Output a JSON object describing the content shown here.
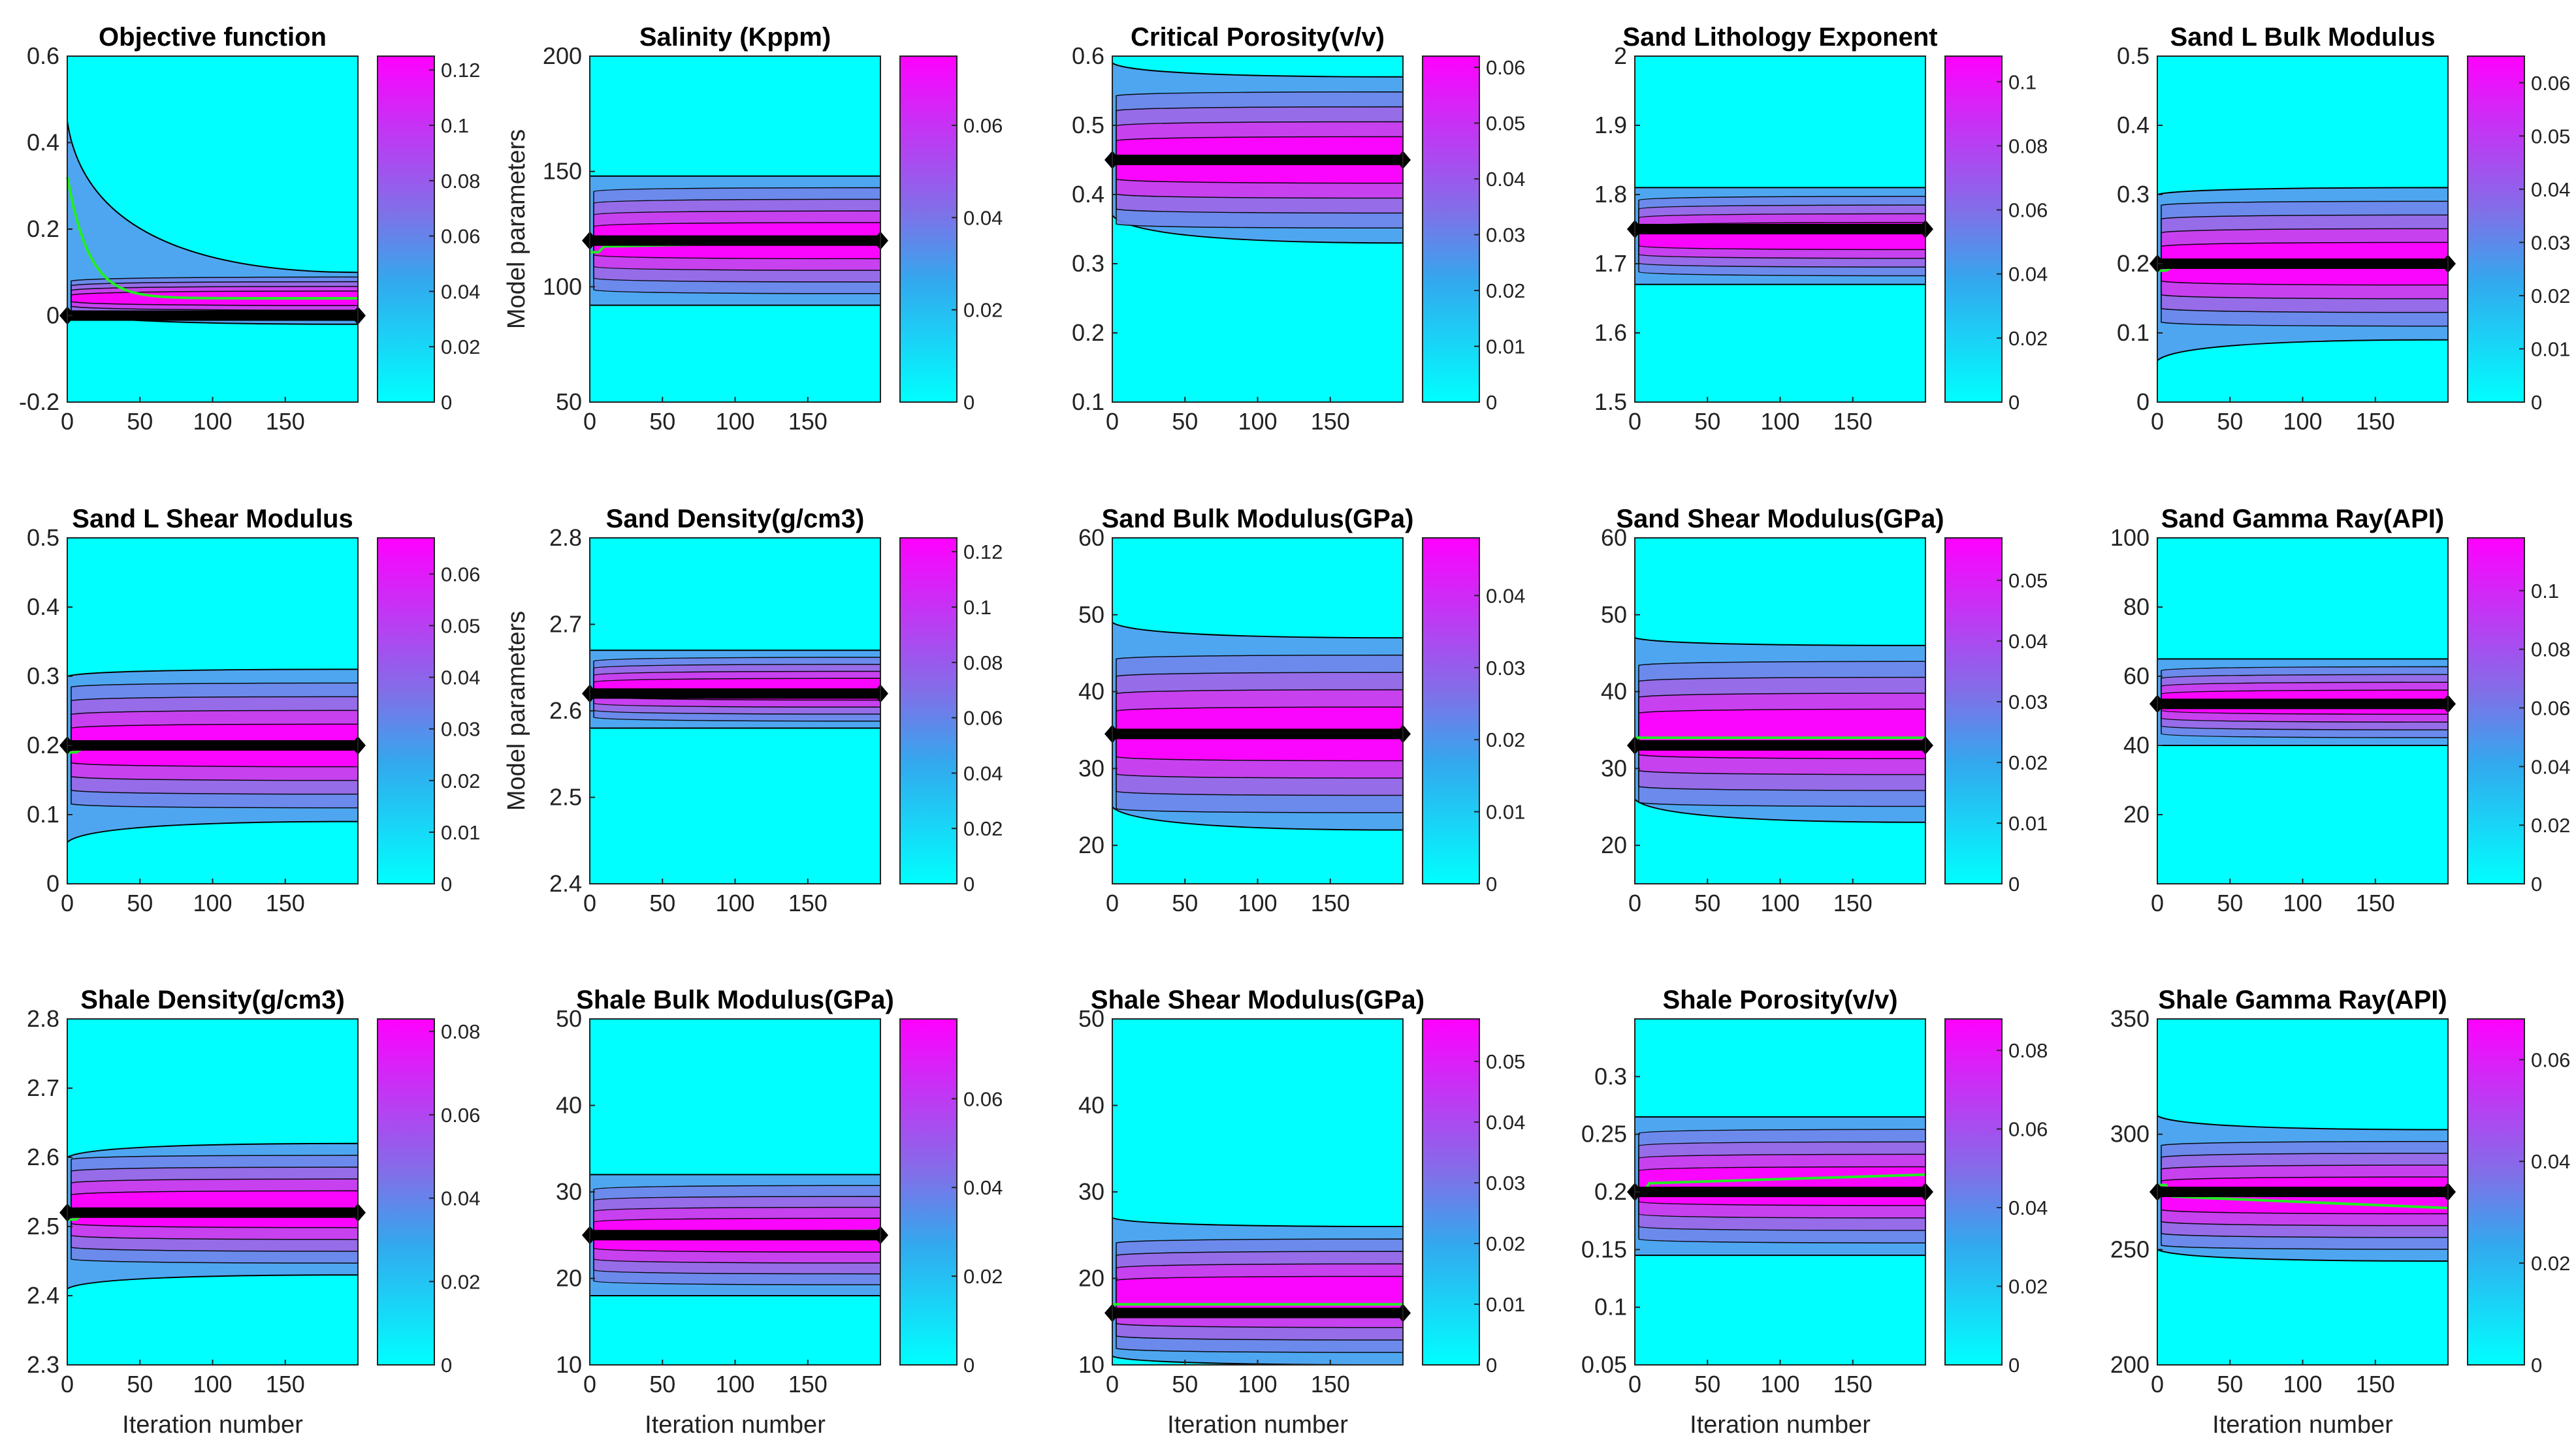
{
  "figure": {
    "xlabel": "Iteration number",
    "ylabel": "Model parameters",
    "colors": {
      "background": "#ffffff",
      "cmap_low": "#00ffff",
      "cmap_high": "#ff00ff",
      "contour_line": "#000000",
      "mean_path": "#22ee22",
      "true_value": "#000000"
    }
  },
  "chart_data": [
    {
      "type": "heatmap",
      "title": "Objective function",
      "xlabel": "",
      "ylabel": "",
      "xlim": [
        0,
        200
      ],
      "ylim": [
        -0.2,
        0.6
      ],
      "xticks": [
        0,
        50,
        100,
        150
      ],
      "yticks": [
        -0.2,
        0,
        0.2,
        0.4,
        0.6
      ],
      "ytick_labels": [
        "-0.2",
        "0",
        "0.2",
        "0.4",
        "0.6"
      ],
      "true_value": 0,
      "band_upper": 0.1,
      "band_lower": -0.02,
      "initial_spread": [
        0.45,
        0.01
      ],
      "mean_start": 0.32,
      "mean_end": 0.04,
      "decay_iterations": 15,
      "colorbar_ticks": [
        0,
        0.02,
        0.04,
        0.06,
        0.08,
        0.1,
        0.12
      ],
      "colorbar_labels": [
        "0",
        "0.02",
        "0.04",
        "0.06",
        "0.08",
        "0.1",
        "0.12"
      ],
      "colorbar_max": 0.125
    },
    {
      "type": "heatmap",
      "title": "Salinity (Kppm)",
      "xlabel": "",
      "ylabel": "Model parameters",
      "xlim": [
        0,
        200
      ],
      "ylim": [
        50,
        200
      ],
      "xticks": [
        0,
        50,
        100,
        150
      ],
      "yticks": [
        50,
        100,
        150,
        200
      ],
      "ytick_labels": [
        "50",
        "100",
        "150",
        "200"
      ],
      "true_value": 120,
      "band_upper": 148,
      "band_lower": 92,
      "initial_spread": null,
      "mean_start": 115,
      "mean_end": 120,
      "colorbar_ticks": [
        0,
        0.02,
        0.04,
        0.06
      ],
      "colorbar_labels": [
        "0",
        "0.02",
        "0.04",
        "0.06"
      ],
      "colorbar_max": 0.075
    },
    {
      "type": "heatmap",
      "title": "Critical Porosity(v/v)",
      "xlabel": "",
      "ylabel": "",
      "xlim": [
        0,
        200
      ],
      "ylim": [
        0.1,
        0.6
      ],
      "xticks": [
        0,
        50,
        100,
        150
      ],
      "yticks": [
        0.1,
        0.2,
        0.3,
        0.4,
        0.5,
        0.6
      ],
      "ytick_labels": [
        "0.1",
        "0.2",
        "0.3",
        "0.4",
        "0.5",
        "0.6"
      ],
      "true_value": 0.45,
      "band_upper": 0.57,
      "band_lower": 0.33,
      "initial_spread": [
        0.59,
        0.37
      ],
      "mean_start": 0.45,
      "mean_end": 0.455,
      "colorbar_ticks": [
        0,
        0.01,
        0.02,
        0.03,
        0.04,
        0.05,
        0.06
      ],
      "colorbar_labels": [
        "0",
        "0.01",
        "0.02",
        "0.03",
        "0.04",
        "0.05",
        "0.06"
      ],
      "colorbar_max": 0.062
    },
    {
      "type": "heatmap",
      "title": "Sand Lithology Exponent",
      "xlabel": "",
      "ylabel": "",
      "xlim": [
        0,
        200
      ],
      "ylim": [
        1.5,
        2
      ],
      "xticks": [
        0,
        50,
        100,
        150
      ],
      "yticks": [
        1.5,
        1.6,
        1.7,
        1.8,
        1.9,
        2
      ],
      "ytick_labels": [
        "1.5",
        "1.6",
        "1.7",
        "1.8",
        "1.9",
        "2"
      ],
      "true_value": 1.75,
      "band_upper": 1.81,
      "band_lower": 1.67,
      "initial_spread": null,
      "mean_start": 1.75,
      "mean_end": 1.745,
      "colorbar_ticks": [
        0,
        0.02,
        0.04,
        0.06,
        0.08,
        0.1
      ],
      "colorbar_labels": [
        "0",
        "0.02",
        "0.04",
        "0.06",
        "0.08",
        "0.1"
      ],
      "colorbar_max": 0.108
    },
    {
      "type": "heatmap",
      "title": "Sand L Bulk Modulus",
      "xlabel": "",
      "ylabel": "",
      "xlim": [
        0,
        200
      ],
      "ylim": [
        0,
        0.5
      ],
      "xticks": [
        0,
        50,
        100,
        150
      ],
      "yticks": [
        0,
        0.1,
        0.2,
        0.3,
        0.4,
        0.5
      ],
      "ytick_labels": [
        "0",
        "0.1",
        "0.2",
        "0.3",
        "0.4",
        "0.5"
      ],
      "true_value": 0.2,
      "band_upper": 0.31,
      "band_lower": 0.09,
      "initial_spread": [
        0.3,
        0.06
      ],
      "mean_start": 0.19,
      "mean_end": 0.2,
      "colorbar_ticks": [
        0,
        0.01,
        0.02,
        0.03,
        0.04,
        0.05,
        0.06
      ],
      "colorbar_labels": [
        "0",
        "0.01",
        "0.02",
        "0.03",
        "0.04",
        "0.05",
        "0.06"
      ],
      "colorbar_max": 0.065
    },
    {
      "type": "heatmap",
      "title": "Sand L Shear Modulus",
      "xlabel": "",
      "ylabel": "",
      "xlim": [
        0,
        200
      ],
      "ylim": [
        0,
        0.5
      ],
      "xticks": [
        0,
        50,
        100,
        150
      ],
      "yticks": [
        0,
        0.1,
        0.2,
        0.3,
        0.4,
        0.5
      ],
      "ytick_labels": [
        "0",
        "0.1",
        "0.2",
        "0.3",
        "0.4",
        "0.5"
      ],
      "true_value": 0.2,
      "band_upper": 0.31,
      "band_lower": 0.09,
      "initial_spread": [
        0.3,
        0.06
      ],
      "mean_start": 0.19,
      "mean_end": 0.2,
      "colorbar_ticks": [
        0,
        0.01,
        0.02,
        0.03,
        0.04,
        0.05,
        0.06
      ],
      "colorbar_labels": [
        "0",
        "0.01",
        "0.02",
        "0.03",
        "0.04",
        "0.05",
        "0.06"
      ],
      "colorbar_max": 0.067
    },
    {
      "type": "heatmap",
      "title": "Sand Density(g/cm3)",
      "xlabel": "",
      "ylabel": "Model parameters",
      "xlim": [
        0,
        200
      ],
      "ylim": [
        2.4,
        2.8
      ],
      "xticks": [
        0,
        50,
        100,
        150
      ],
      "yticks": [
        2.4,
        2.5,
        2.6,
        2.7,
        2.8
      ],
      "ytick_labels": [
        "2.4",
        "2.5",
        "2.6",
        "2.7",
        "2.8"
      ],
      "true_value": 2.62,
      "band_upper": 2.67,
      "band_lower": 2.58,
      "initial_spread": null,
      "mean_start": 2.62,
      "mean_end": 2.62,
      "colorbar_ticks": [
        0,
        0.02,
        0.04,
        0.06,
        0.08,
        0.1,
        0.12
      ],
      "colorbar_labels": [
        "0",
        "0.02",
        "0.04",
        "0.06",
        "0.08",
        "0.1",
        "0.12"
      ],
      "colorbar_max": 0.125
    },
    {
      "type": "heatmap",
      "title": "Sand Bulk Modulus(GPa)",
      "xlabel": "",
      "ylabel": "",
      "xlim": [
        0,
        200
      ],
      "ylim": [
        15,
        60
      ],
      "xticks": [
        0,
        50,
        100,
        150
      ],
      "yticks": [
        20,
        30,
        40,
        50,
        60
      ],
      "ytick_labels": [
        "20",
        "30",
        "40",
        "50",
        "60"
      ],
      "true_value": 34.5,
      "band_upper": 47,
      "band_lower": 22,
      "initial_spread": [
        49,
        25
      ],
      "mean_start": 35,
      "mean_end": 35,
      "colorbar_ticks": [
        0,
        0.01,
        0.02,
        0.03,
        0.04
      ],
      "colorbar_labels": [
        "0",
        "0.01",
        "0.02",
        "0.03",
        "0.04"
      ],
      "colorbar_max": 0.048
    },
    {
      "type": "heatmap",
      "title": "Sand Shear Modulus(GPa)",
      "xlabel": "",
      "ylabel": "",
      "xlim": [
        0,
        200
      ],
      "ylim": [
        15,
        60
      ],
      "xticks": [
        0,
        50,
        100,
        150
      ],
      "yticks": [
        20,
        30,
        40,
        50,
        60
      ],
      "ytick_labels": [
        "20",
        "30",
        "40",
        "50",
        "60"
      ],
      "true_value": 33,
      "band_upper": 46,
      "band_lower": 23,
      "initial_spread": [
        47,
        26
      ],
      "mean_start": 34,
      "mean_end": 34,
      "colorbar_ticks": [
        0,
        0.01,
        0.02,
        0.03,
        0.04,
        0.05
      ],
      "colorbar_labels": [
        "0",
        "0.01",
        "0.02",
        "0.03",
        "0.04",
        "0.05"
      ],
      "colorbar_max": 0.057
    },
    {
      "type": "heatmap",
      "title": "Sand Gamma Ray(API)",
      "xlabel": "",
      "ylabel": "",
      "xlim": [
        0,
        200
      ],
      "ylim": [
        0,
        100
      ],
      "xticks": [
        0,
        50,
        100,
        150
      ],
      "yticks": [
        20,
        40,
        60,
        80,
        100
      ],
      "ytick_labels": [
        "20",
        "40",
        "60",
        "80",
        "100"
      ],
      "true_value": 52,
      "band_upper": 65,
      "band_lower": 40,
      "initial_spread": null,
      "mean_start": 52,
      "mean_end": 52,
      "colorbar_ticks": [
        0,
        0.02,
        0.04,
        0.06,
        0.08,
        0.1
      ],
      "colorbar_labels": [
        "0",
        "0.02",
        "0.04",
        "0.06",
        "0.08",
        "0.1"
      ],
      "colorbar_max": 0.118
    },
    {
      "type": "heatmap",
      "title": "Shale Density(g/cm3)",
      "xlabel": "Iteration number",
      "ylabel": "",
      "xlim": [
        0,
        200
      ],
      "ylim": [
        2.3,
        2.8
      ],
      "xticks": [
        0,
        50,
        100,
        150
      ],
      "yticks": [
        2.3,
        2.4,
        2.5,
        2.6,
        2.7,
        2.8
      ],
      "ytick_labels": [
        "2.3",
        "2.4",
        "2.5",
        "2.6",
        "2.7",
        "2.8"
      ],
      "true_value": 2.52,
      "band_upper": 2.62,
      "band_lower": 2.43,
      "initial_spread": [
        2.6,
        2.41
      ],
      "mean_start": 2.51,
      "mean_end": 2.525,
      "colorbar_ticks": [
        0,
        0.02,
        0.04,
        0.06,
        0.08
      ],
      "colorbar_labels": [
        "0",
        "0.02",
        "0.04",
        "0.06",
        "0.08"
      ],
      "colorbar_max": 0.083
    },
    {
      "type": "heatmap",
      "title": "Shale Bulk Modulus(GPa)",
      "xlabel": "Iteration number",
      "ylabel": "",
      "xlim": [
        0,
        200
      ],
      "ylim": [
        10,
        50
      ],
      "xticks": [
        0,
        50,
        100,
        150
      ],
      "yticks": [
        10,
        20,
        30,
        40,
        50
      ],
      "ytick_labels": [
        "10",
        "20",
        "30",
        "40",
        "50"
      ],
      "true_value": 25,
      "band_upper": 32,
      "band_lower": 18,
      "initial_spread": null,
      "mean_start": 25,
      "mean_end": 25.5,
      "colorbar_ticks": [
        0,
        0.02,
        0.04,
        0.06
      ],
      "colorbar_labels": [
        "0",
        "0.02",
        "0.04",
        "0.06"
      ],
      "colorbar_max": 0.078
    },
    {
      "type": "heatmap",
      "title": "Shale Shear Modulus(GPa)",
      "xlabel": "Iteration number",
      "ylabel": "",
      "xlim": [
        0,
        200
      ],
      "ylim": [
        10,
        50
      ],
      "xticks": [
        0,
        50,
        100,
        150
      ],
      "yticks": [
        10,
        20,
        30,
        40,
        50
      ],
      "ytick_labels": [
        "10",
        "20",
        "30",
        "40",
        "50"
      ],
      "true_value": 16,
      "band_upper": 26,
      "band_lower": 10,
      "initial_spread": [
        27,
        11
      ],
      "mean_start": 17,
      "mean_end": 17,
      "colorbar_ticks": [
        0,
        0.01,
        0.02,
        0.03,
        0.04,
        0.05
      ],
      "colorbar_labels": [
        "0",
        "0.01",
        "0.02",
        "0.03",
        "0.04",
        "0.05"
      ],
      "colorbar_max": 0.057
    },
    {
      "type": "heatmap",
      "title": "Shale Porosity(v/v)",
      "xlabel": "Iteration number",
      "ylabel": "",
      "xlim": [
        0,
        200
      ],
      "ylim": [
        0.05,
        0.35
      ],
      "xticks": [
        0,
        50,
        100,
        150
      ],
      "yticks": [
        0.05,
        0.1,
        0.15,
        0.2,
        0.25,
        0.3
      ],
      "ytick_labels": [
        "0.05",
        "0.1",
        "0.15",
        "0.2",
        "0.25",
        "0.3"
      ],
      "true_value": 0.2,
      "band_upper": 0.265,
      "band_lower": 0.145,
      "initial_spread": null,
      "mean_start": 0.2,
      "mean_end": 0.215,
      "colorbar_ticks": [
        0,
        0.02,
        0.04,
        0.06,
        0.08
      ],
      "colorbar_labels": [
        "0",
        "0.02",
        "0.04",
        "0.06",
        "0.08"
      ],
      "colorbar_max": 0.088
    },
    {
      "type": "heatmap",
      "title": "Shale Gamma Ray(API)",
      "xlabel": "Iteration number",
      "ylabel": "",
      "xlim": [
        0,
        200
      ],
      "ylim": [
        200,
        350
      ],
      "xticks": [
        0,
        50,
        100,
        150
      ],
      "yticks": [
        200,
        250,
        300,
        350
      ],
      "ytick_labels": [
        "200",
        "250",
        "300",
        "350"
      ],
      "true_value": 275,
      "band_upper": 302,
      "band_lower": 245,
      "initial_spread": [
        308,
        250
      ],
      "mean_start": 278,
      "mean_end": 268,
      "colorbar_ticks": [
        0,
        0.02,
        0.04,
        0.06
      ],
      "colorbar_labels": [
        "0",
        "0.02",
        "0.04",
        "0.06"
      ],
      "colorbar_max": 0.068
    }
  ]
}
